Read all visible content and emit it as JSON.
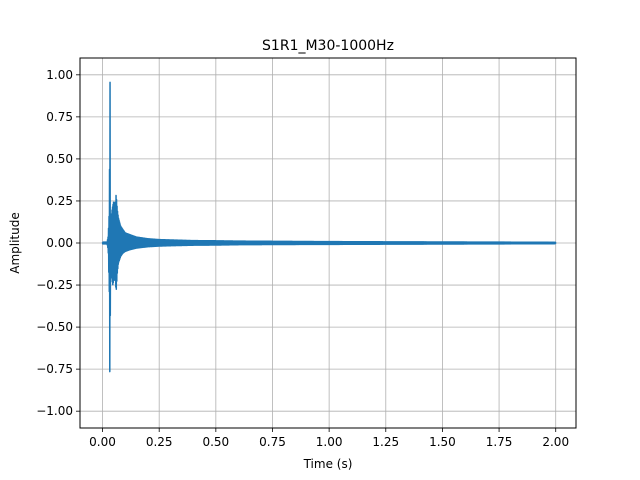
{
  "chart_data": {
    "type": "line",
    "title": "S1R1_M30-1000Hz",
    "xlabel": "Time (s)",
    "ylabel": "Amplitude",
    "xlim": [
      -0.0995,
      2.0895
    ],
    "ylim": [
      -1.1,
      1.1
    ],
    "xticks": [
      0.0,
      0.25,
      0.5,
      0.75,
      1.0,
      1.25,
      1.5,
      1.75,
      2.0
    ],
    "xtick_labels": [
      "0.00",
      "0.25",
      "0.50",
      "0.75",
      "1.00",
      "1.25",
      "1.50",
      "1.75",
      "2.00"
    ],
    "yticks": [
      -1.0,
      -0.75,
      -0.5,
      -0.25,
      0.0,
      0.25,
      0.5,
      0.75,
      1.0
    ],
    "ytick_labels": [
      "−1.00",
      "−0.75",
      "−0.50",
      "−0.25",
      "0.00",
      "0.25",
      "0.50",
      "0.75",
      "1.00"
    ],
    "grid": true,
    "line_color": "#1f77b4",
    "series": [
      {
        "x": [
          0.0,
          0.02,
          0.025,
          0.03,
          0.033,
          0.035,
          0.037,
          0.04,
          0.045,
          0.05,
          0.055,
          0.06,
          0.065,
          0.07,
          0.08,
          0.09,
          0.1,
          0.12,
          0.15,
          0.2,
          0.25,
          0.3,
          0.4,
          0.5,
          0.6,
          0.75,
          1.0,
          1.25,
          1.5,
          1.75,
          2.0
        ],
        "envelope_upper": [
          0.005,
          0.005,
          0.04,
          0.2,
          1.0,
          0.05,
          0.1,
          0.18,
          0.22,
          0.25,
          0.2,
          0.29,
          0.2,
          0.15,
          0.1,
          0.08,
          0.06,
          0.05,
          0.035,
          0.025,
          0.02,
          0.018,
          0.014,
          0.013,
          0.011,
          0.01,
          0.008,
          0.007,
          0.006,
          0.005,
          0.004
        ],
        "envelope_lower": [
          -0.005,
          -0.005,
          -0.04,
          -0.3,
          -1.0,
          -0.05,
          -0.2,
          -0.2,
          -0.25,
          -0.22,
          -0.2,
          -0.29,
          -0.18,
          -0.12,
          -0.08,
          -0.06,
          -0.05,
          -0.04,
          -0.03,
          -0.022,
          -0.018,
          -0.016,
          -0.013,
          -0.012,
          -0.01,
          -0.009,
          -0.008,
          -0.007,
          -0.006,
          -0.005,
          -0.004
        ]
      }
    ]
  }
}
